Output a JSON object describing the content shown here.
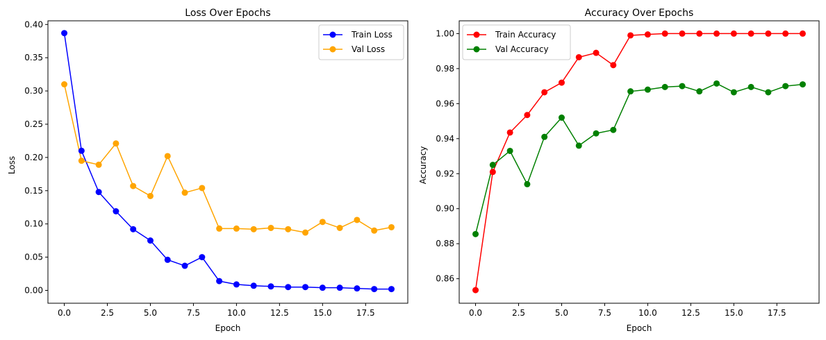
{
  "chart_data": [
    {
      "type": "line",
      "title": "Loss Over Epochs",
      "xlabel": "Epoch",
      "ylabel": "Loss",
      "xlim": [
        -0.95,
        19.95
      ],
      "ylim": [
        -0.0193,
        0.4055
      ],
      "xticks": [
        0.0,
        2.5,
        5.0,
        7.5,
        10.0,
        12.5,
        15.0,
        17.5
      ],
      "xtick_labels": [
        "0.0",
        "2.5",
        "5.0",
        "7.5",
        "10.0",
        "12.5",
        "15.0",
        "17.5"
      ],
      "yticks": [
        0.0,
        0.05,
        0.1,
        0.15,
        0.2,
        0.25,
        0.3,
        0.35,
        0.4
      ],
      "ytick_labels": [
        "0.00",
        "0.05",
        "0.10",
        "0.15",
        "0.20",
        "0.25",
        "0.30",
        "0.35",
        "0.40"
      ],
      "grid": false,
      "legend_position": "top-right",
      "x": [
        0,
        1,
        2,
        3,
        4,
        5,
        6,
        7,
        8,
        9,
        10,
        11,
        12,
        13,
        14,
        15,
        16,
        17,
        18,
        19
      ],
      "series": [
        {
          "name": "Train Loss",
          "color": "#0000ff",
          "values": [
            0.387,
            0.21,
            0.148,
            0.119,
            0.092,
            0.075,
            0.046,
            0.037,
            0.05,
            0.014,
            0.009,
            0.007,
            0.006,
            0.005,
            0.005,
            0.004,
            0.004,
            0.003,
            0.002,
            0.002
          ]
        },
        {
          "name": "Val Loss",
          "color": "#ffa500",
          "values": [
            0.31,
            0.195,
            0.189,
            0.221,
            0.157,
            0.142,
            0.202,
            0.147,
            0.154,
            0.093,
            0.093,
            0.092,
            0.094,
            0.092,
            0.087,
            0.103,
            0.094,
            0.106,
            0.09,
            0.095
          ]
        }
      ]
    },
    {
      "type": "line",
      "title": "Accuracy Over Epochs",
      "xlabel": "Epoch",
      "ylabel": "Accuracy",
      "xlim": [
        -0.95,
        19.95
      ],
      "ylim": [
        0.846,
        1.0073
      ],
      "xticks": [
        0.0,
        2.5,
        5.0,
        7.5,
        10.0,
        12.5,
        15.0,
        17.5
      ],
      "xtick_labels": [
        "0.0",
        "2.5",
        "5.0",
        "7.5",
        "10.0",
        "12.5",
        "15.0",
        "17.5"
      ],
      "yticks": [
        0.86,
        0.88,
        0.9,
        0.92,
        0.94,
        0.96,
        0.98,
        1.0
      ],
      "ytick_labels": [
        "0.86",
        "0.88",
        "0.90",
        "0.92",
        "0.94",
        "0.96",
        "0.98",
        "1.00"
      ],
      "grid": false,
      "legend_position": "top-left",
      "x": [
        0,
        1,
        2,
        3,
        4,
        5,
        6,
        7,
        8,
        9,
        10,
        11,
        12,
        13,
        14,
        15,
        16,
        17,
        18,
        19
      ],
      "series": [
        {
          "name": "Train Accuracy",
          "color": "#ff0000",
          "values": [
            0.8535,
            0.921,
            0.9435,
            0.9535,
            0.9665,
            0.972,
            0.9865,
            0.989,
            0.982,
            0.999,
            0.9995,
            1.0,
            1.0,
            1.0,
            1.0,
            1.0,
            1.0,
            1.0,
            1.0,
            1.0
          ]
        },
        {
          "name": "Val Accuracy",
          "color": "#008000",
          "values": [
            0.8855,
            0.925,
            0.933,
            0.914,
            0.941,
            0.952,
            0.936,
            0.943,
            0.945,
            0.967,
            0.968,
            0.9695,
            0.97,
            0.967,
            0.9715,
            0.9665,
            0.9695,
            0.9665,
            0.97,
            0.971
          ]
        }
      ]
    }
  ]
}
